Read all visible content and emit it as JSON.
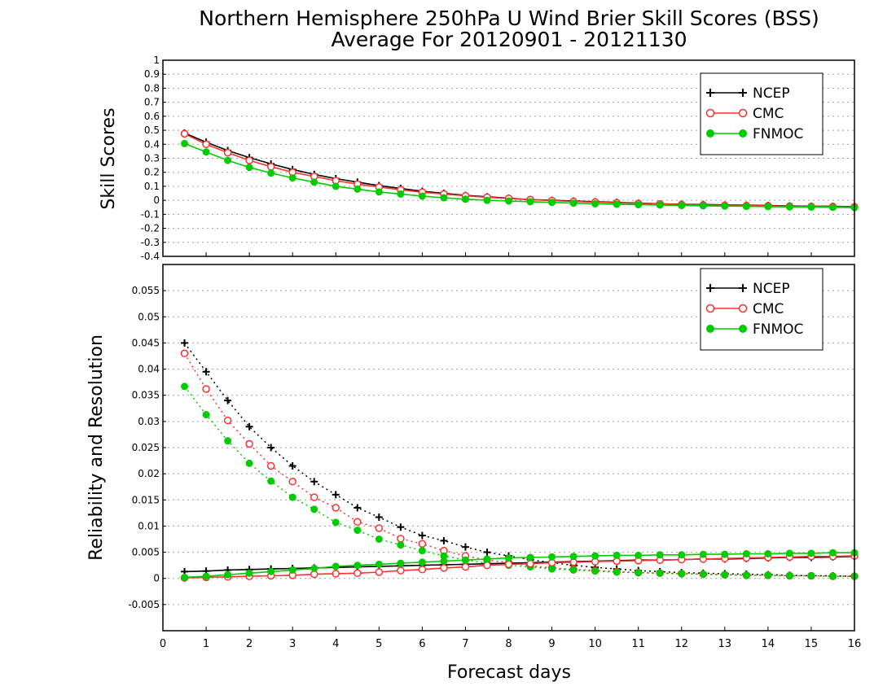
{
  "title_line1": "Northern Hemisphere 250hPa U Wind Brier Skill Scores (BSS)",
  "title_line2": "Average For 20120901 - 20121130",
  "colors": {
    "ncep": "#000000",
    "cmc": "#ff3030",
    "fnmoc": "#00cc00",
    "grid": "#a0a0a0"
  },
  "chart_data": [
    {
      "type": "line",
      "ylabel": "Skill Scores",
      "xlim": [
        0,
        16
      ],
      "ylim": [
        -0.4,
        1
      ],
      "grid": true,
      "legend_position": "top-right",
      "legend": [
        "NCEP",
        "CMC",
        "FNMOC"
      ],
      "y_ticks": [
        "1",
        "0.9",
        "0.8",
        "0.7",
        "0.6",
        "0.5",
        "0.4",
        "0.3",
        "0.2",
        "0.1",
        "0",
        "-0.1",
        "-0.2",
        "-0.3",
        "-0.4"
      ],
      "x": [
        0.5,
        1,
        1.5,
        2,
        2.5,
        3,
        3.5,
        4,
        4.5,
        5,
        5.5,
        6,
        6.5,
        7,
        7.5,
        8,
        8.5,
        9,
        9.5,
        10,
        10.5,
        11,
        11.5,
        12,
        12.5,
        13,
        13.5,
        14,
        14.5,
        15,
        15.5,
        16
      ],
      "series": [
        {
          "name": "NCEP",
          "values": [
            0.48,
            0.415,
            0.355,
            0.305,
            0.26,
            0.22,
            0.185,
            0.155,
            0.13,
            0.105,
            0.085,
            0.065,
            0.05,
            0.035,
            0.025,
            0.015,
            0.005,
            0.0,
            -0.005,
            -0.01,
            -0.015,
            -0.02,
            -0.025,
            -0.028,
            -0.03,
            -0.033,
            -0.035,
            -0.037,
            -0.04,
            -0.042,
            -0.043,
            -0.045
          ]
        },
        {
          "name": "CMC",
          "values": [
            0.475,
            0.4,
            0.34,
            0.285,
            0.24,
            0.2,
            0.17,
            0.14,
            0.115,
            0.095,
            0.075,
            0.058,
            0.045,
            0.032,
            0.022,
            0.013,
            0.005,
            -0.002,
            -0.008,
            -0.013,
            -0.018,
            -0.022,
            -0.026,
            -0.03,
            -0.033,
            -0.036,
            -0.038,
            -0.04,
            -0.042,
            -0.044,
            -0.045,
            -0.047
          ]
        },
        {
          "name": "FNMOC",
          "values": [
            0.405,
            0.345,
            0.285,
            0.235,
            0.195,
            0.16,
            0.13,
            0.1,
            0.08,
            0.06,
            0.045,
            0.03,
            0.018,
            0.008,
            0.0,
            -0.005,
            -0.01,
            -0.015,
            -0.02,
            -0.025,
            -0.028,
            -0.031,
            -0.034,
            -0.037,
            -0.039,
            -0.041,
            -0.043,
            -0.045,
            -0.047,
            -0.048,
            -0.05,
            -0.052
          ]
        }
      ]
    },
    {
      "type": "line",
      "xlabel": "Forecast days",
      "ylabel": "Reliability and Resolution",
      "xlim": [
        0,
        16
      ],
      "ylim": [
        -0.01,
        0.06
      ],
      "grid": true,
      "legend_position": "top-right",
      "legend": [
        "NCEP",
        "CMC",
        "FNMOC"
      ],
      "x_ticks": [
        "0",
        "1",
        "2",
        "3",
        "4",
        "5",
        "6",
        "7",
        "8",
        "9",
        "10",
        "11",
        "12",
        "13",
        "14",
        "15",
        "16"
      ],
      "y_ticks": [
        "0.055",
        "0.05",
        "0.045",
        "0.04",
        "0.035",
        "0.03",
        "0.025",
        "0.02",
        "0.015",
        "0.01",
        "0.005",
        "0",
        "-0.005"
      ],
      "x": [
        0.5,
        1,
        1.5,
        2,
        2.5,
        3,
        3.5,
        4,
        4.5,
        5,
        5.5,
        6,
        6.5,
        7,
        7.5,
        8,
        8.5,
        9,
        9.5,
        10,
        10.5,
        11,
        11.5,
        12,
        12.5,
        13,
        13.5,
        14,
        14.5,
        15,
        15.5,
        16
      ],
      "series": [
        {
          "name": "NCEP",
          "line": "dotted",
          "values": [
            0.045,
            0.0395,
            0.034,
            0.029,
            0.025,
            0.0215,
            0.0185,
            0.016,
            0.0135,
            0.0117,
            0.0098,
            0.0082,
            0.0072,
            0.006,
            0.005,
            0.0043,
            0.0036,
            0.003,
            0.0025,
            0.0021,
            0.0018,
            0.0015,
            0.0013,
            0.0011,
            0.001,
            0.0009,
            0.0008,
            0.0007,
            0.0006,
            0.0005,
            0.0005,
            0.0004
          ]
        },
        {
          "name": "CMC",
          "line": "dotted",
          "values": [
            0.043,
            0.0362,
            0.0302,
            0.0257,
            0.0215,
            0.0185,
            0.0155,
            0.0135,
            0.0108,
            0.0096,
            0.0076,
            0.0066,
            0.0053,
            0.0043,
            0.0035,
            0.003,
            0.0024,
            0.002,
            0.0017,
            0.0015,
            0.0013,
            0.0011,
            0.001,
            0.0009,
            0.0008,
            0.0007,
            0.0006,
            0.0006,
            0.0005,
            0.0005,
            0.0004,
            0.0004
          ]
        },
        {
          "name": "FNMOC",
          "line": "dotted",
          "values": [
            0.0367,
            0.0313,
            0.0263,
            0.022,
            0.0186,
            0.0155,
            0.0132,
            0.0107,
            0.0092,
            0.0075,
            0.0064,
            0.0053,
            0.0043,
            0.0035,
            0.0029,
            0.0025,
            0.0022,
            0.0018,
            0.0016,
            0.0014,
            0.0012,
            0.0011,
            0.001,
            0.0009,
            0.0008,
            0.0007,
            0.0006,
            0.0006,
            0.0005,
            0.0005,
            0.0004,
            0.0004
          ]
        },
        {
          "name": "NCEP",
          "line": "solid",
          "values": [
            0.0013,
            0.0014,
            0.0016,
            0.0017,
            0.0018,
            0.0019,
            0.002,
            0.0021,
            0.0022,
            0.0023,
            0.0024,
            0.0025,
            0.0026,
            0.0027,
            0.0028,
            0.0029,
            0.003,
            0.0031,
            0.0032,
            0.0033,
            0.0034,
            0.0035,
            0.0035,
            0.0036,
            0.0037,
            0.0037,
            0.0038,
            0.0039,
            0.004,
            0.004,
            0.0041,
            0.0042
          ]
        },
        {
          "name": "CMC",
          "line": "solid",
          "values": [
            0.0001,
            0.0002,
            0.0003,
            0.0004,
            0.0005,
            0.0006,
            0.0008,
            0.0009,
            0.001,
            0.0012,
            0.0015,
            0.0017,
            0.002,
            0.0022,
            0.0025,
            0.0027,
            0.0028,
            0.003,
            0.0031,
            0.0032,
            0.0033,
            0.0034,
            0.0035,
            0.0036,
            0.0037,
            0.0038,
            0.0039,
            0.004,
            0.0041,
            0.0042,
            0.0042,
            0.0043
          ]
        },
        {
          "name": "FNMOC",
          "line": "solid",
          "values": [
            0.0002,
            0.0004,
            0.0007,
            0.001,
            0.0013,
            0.0016,
            0.0019,
            0.0023,
            0.0025,
            0.0027,
            0.0029,
            0.0031,
            0.0033,
            0.0035,
            0.0037,
            0.0039,
            0.004,
            0.0041,
            0.0042,
            0.0043,
            0.0044,
            0.0044,
            0.0045,
            0.0045,
            0.0046,
            0.0046,
            0.0047,
            0.0047,
            0.0048,
            0.0048,
            0.0049,
            0.0049
          ]
        }
      ]
    }
  ]
}
